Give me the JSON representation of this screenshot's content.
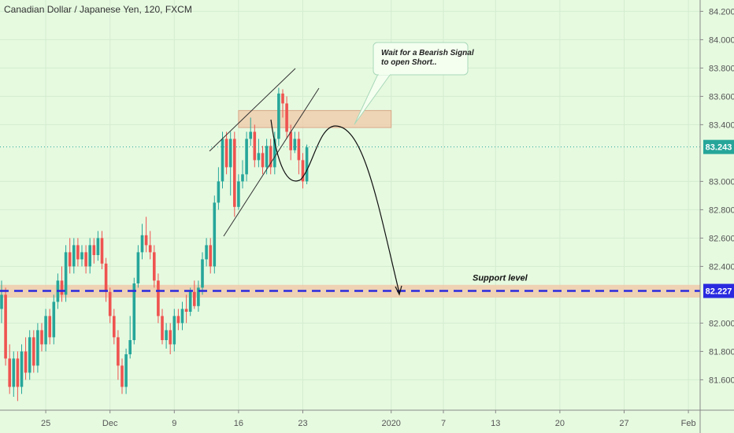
{
  "chart_data": {
    "type": "candlestick",
    "title": "Canadian Dollar / Japanese Yen, 120, FXCM",
    "ylim": [
      81.38,
      84.28
    ],
    "y_ticks": [
      "84.200",
      "84.000",
      "83.800",
      "83.600",
      "83.400",
      "83.000",
      "82.800",
      "82.600",
      "82.400",
      "82.000",
      "81.800",
      "81.600"
    ],
    "y_tick_values": [
      84.2,
      84.0,
      83.8,
      83.6,
      83.4,
      83.0,
      82.8,
      82.6,
      82.4,
      82.0,
      81.8,
      81.6
    ],
    "x_ticks": [
      "25",
      "Dec",
      "9",
      "16",
      "23",
      "2020",
      "7",
      "13",
      "20",
      "27",
      "Feb"
    ],
    "x_tick_index": [
      11,
      27,
      43,
      59,
      75,
      97,
      110,
      123,
      139,
      155,
      171
    ],
    "grid": true,
    "colors": {
      "up": "#26a69a",
      "down": "#ef5350",
      "background": "#e6fae0",
      "support": "#2a2ae0",
      "zone": "#f0c8a8"
    },
    "candles": [
      [
        82.1,
        82.2,
        82.3,
        82.0
      ],
      [
        82.2,
        81.75,
        82.25,
        81.7
      ],
      [
        81.75,
        81.55,
        81.85,
        81.5
      ],
      [
        81.55,
        81.75,
        81.8,
        81.48
      ],
      [
        81.75,
        81.55,
        81.8,
        81.45
      ],
      [
        81.55,
        81.8,
        81.85,
        81.5
      ],
      [
        81.8,
        81.65,
        81.9,
        81.6
      ],
      [
        81.65,
        81.9,
        81.95,
        81.6
      ],
      [
        81.9,
        81.7,
        81.95,
        81.65
      ],
      [
        81.7,
        81.95,
        82.0,
        81.65
      ],
      [
        81.95,
        81.85,
        82.0,
        81.8
      ],
      [
        81.85,
        82.05,
        82.1,
        81.8
      ],
      [
        82.05,
        81.9,
        82.1,
        81.85
      ],
      [
        81.9,
        82.15,
        82.2,
        81.85
      ],
      [
        82.15,
        82.3,
        82.35,
        82.1
      ],
      [
        82.3,
        82.2,
        82.4,
        82.15
      ],
      [
        82.2,
        82.5,
        82.55,
        82.15
      ],
      [
        82.5,
        82.4,
        82.6,
        82.35
      ],
      [
        82.4,
        82.55,
        82.6,
        82.35
      ],
      [
        82.55,
        82.45,
        82.6,
        82.4
      ],
      [
        82.45,
        82.5,
        82.55,
        82.4
      ],
      [
        82.5,
        82.4,
        82.55,
        82.35
      ],
      [
        82.4,
        82.55,
        82.6,
        82.35
      ],
      [
        82.55,
        82.48,
        82.6,
        82.42
      ],
      [
        82.48,
        82.6,
        82.65,
        82.44
      ],
      [
        82.6,
        82.42,
        82.65,
        82.38
      ],
      [
        82.42,
        82.22,
        82.46,
        82.15
      ],
      [
        82.22,
        82.05,
        82.25,
        82.0
      ],
      [
        82.05,
        81.9,
        82.1,
        81.85
      ],
      [
        81.9,
        81.7,
        81.95,
        81.6
      ],
      [
        81.7,
        81.55,
        81.75,
        81.5
      ],
      [
        81.55,
        81.78,
        81.82,
        81.5
      ],
      [
        81.78,
        81.88,
        82.05,
        81.75
      ],
      [
        81.88,
        82.28,
        82.32,
        81.85
      ],
      [
        82.28,
        82.5,
        82.55,
        82.25
      ],
      [
        82.5,
        82.62,
        82.7,
        82.45
      ],
      [
        82.62,
        82.55,
        82.75,
        82.5
      ],
      [
        82.55,
        82.5,
        82.65,
        82.45
      ],
      [
        82.5,
        82.3,
        82.55,
        82.25
      ],
      [
        82.3,
        82.05,
        82.35,
        82.0
      ],
      [
        82.05,
        81.88,
        82.1,
        81.85
      ],
      [
        81.88,
        81.95,
        82.0,
        81.82
      ],
      [
        81.95,
        81.85,
        82.0,
        81.78
      ],
      [
        81.85,
        82.05,
        82.1,
        81.8
      ],
      [
        82.05,
        82.0,
        82.1,
        81.95
      ],
      [
        82.0,
        82.1,
        82.15,
        81.95
      ],
      [
        82.1,
        82.08,
        82.2,
        82.0
      ],
      [
        82.08,
        82.22,
        82.25,
        82.05
      ],
      [
        82.22,
        82.12,
        82.3,
        82.1
      ],
      [
        82.12,
        82.25,
        82.3,
        82.08
      ],
      [
        82.25,
        82.45,
        82.5,
        82.2
      ],
      [
        82.45,
        82.55,
        82.6,
        82.4
      ],
      [
        82.55,
        82.4,
        82.6,
        82.35
      ],
      [
        82.4,
        82.85,
        82.9,
        82.35
      ],
      [
        82.85,
        83.0,
        83.1,
        82.8
      ],
      [
        83.0,
        83.3,
        83.35,
        82.95
      ],
      [
        83.3,
        83.1,
        83.35,
        83.05
      ],
      [
        83.1,
        83.3,
        83.35,
        82.9
      ],
      [
        83.3,
        82.82,
        83.35,
        82.75
      ],
      [
        82.82,
        83.0,
        83.05,
        82.8
      ],
      [
        83.0,
        83.05,
        83.15,
        82.95
      ],
      [
        83.05,
        83.3,
        83.35,
        83.0
      ],
      [
        83.3,
        83.35,
        83.45,
        83.25
      ],
      [
        83.35,
        83.15,
        83.4,
        83.1
      ],
      [
        83.15,
        83.2,
        83.3,
        83.1
      ],
      [
        83.2,
        83.1,
        83.25,
        83.05
      ],
      [
        83.1,
        83.25,
        83.3,
        83.05
      ],
      [
        83.25,
        83.1,
        83.3,
        83.05
      ],
      [
        83.1,
        83.3,
        83.35,
        83.05
      ],
      [
        83.3,
        83.62,
        83.66,
        83.25
      ],
      [
        83.62,
        83.55,
        83.65,
        83.45
      ],
      [
        83.55,
        83.35,
        83.6,
        83.3
      ],
      [
        83.35,
        83.22,
        83.4,
        83.15
      ],
      [
        83.22,
        83.3,
        83.35,
        83.2
      ],
      [
        83.3,
        83.15,
        83.35,
        83.05
      ],
      [
        83.15,
        83.0,
        83.2,
        82.95
      ],
      [
        83.0,
        83.24,
        83.26,
        82.98
      ]
    ],
    "annotation": "Wait for a Bearish Signal\nto open Short..",
    "support_label": "Support level",
    "current_price": "83.243",
    "support_price": "82.227",
    "support_value": 82.227,
    "current_value": 83.243,
    "zone": {
      "y_low": 83.38,
      "y_high": 83.5,
      "i_start": 59,
      "i_end": 97
    },
    "support_zone": {
      "y_low": 82.18,
      "y_high": 82.27
    }
  }
}
